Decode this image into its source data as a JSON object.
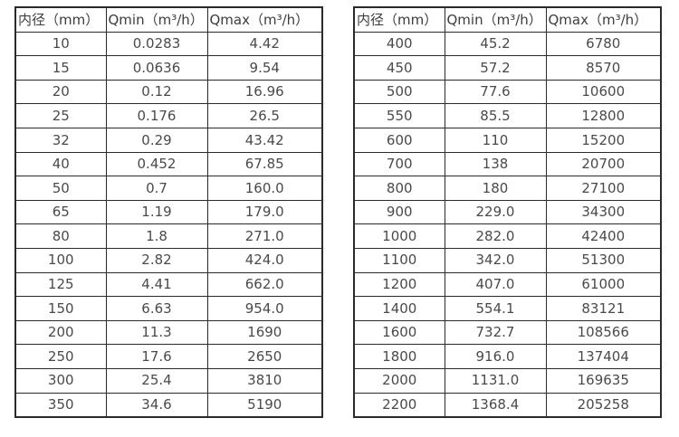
{
  "left_table": {
    "headers": [
      "内径（mm）",
      "Qmin（m³/h）",
      "Qmax（m³/h）"
    ],
    "rows": [
      [
        "10",
        "0.0283",
        "4.42"
      ],
      [
        "15",
        "0.0636",
        "9.54"
      ],
      [
        "20",
        "0.12",
        "16.96"
      ],
      [
        "25",
        "0.176",
        "26.5"
      ],
      [
        "32",
        "0.29",
        "43.42"
      ],
      [
        "40",
        "0.452",
        "67.85"
      ],
      [
        "50",
        "0.7",
        "160.0"
      ],
      [
        "65",
        "1.19",
        "179.0"
      ],
      [
        "80",
        "1.8",
        "271.0"
      ],
      [
        "100",
        "2.82",
        "424.0"
      ],
      [
        "125",
        "4.41",
        "662.0"
      ],
      [
        "150",
        "6.63",
        "954.0"
      ],
      [
        "200",
        "11.3",
        "1690"
      ],
      [
        "250",
        "17.6",
        "2650"
      ],
      [
        "300",
        "25.4",
        "3810"
      ],
      [
        "350",
        "34.6",
        "5190"
      ]
    ]
  },
  "right_table": {
    "headers": [
      "内径（mm）",
      "Qmin（m³/h）",
      "Qmax（m³/h）"
    ],
    "rows": [
      [
        "400",
        "45.2",
        "6780"
      ],
      [
        "450",
        "57.2",
        "8570"
      ],
      [
        "500",
        "77.6",
        "10600"
      ],
      [
        "550",
        "85.5",
        "12800"
      ],
      [
        "600",
        "110",
        "15200"
      ],
      [
        "700",
        "138",
        "20700"
      ],
      [
        "800",
        "180",
        "27100"
      ],
      [
        "900",
        "229.0",
        "34300"
      ],
      [
        "1000",
        "282.0",
        "42400"
      ],
      [
        "1100",
        "342.0",
        "51300"
      ],
      [
        "1200",
        "407.0",
        "61000"
      ],
      [
        "1400",
        "554.1",
        "83121"
      ],
      [
        "1600",
        "732.7",
        "108566"
      ],
      [
        "1800",
        "916.0",
        "137404"
      ],
      [
        "2000",
        "1131.0",
        "169635"
      ],
      [
        "2200",
        "1368.4",
        "205258"
      ]
    ]
  }
}
